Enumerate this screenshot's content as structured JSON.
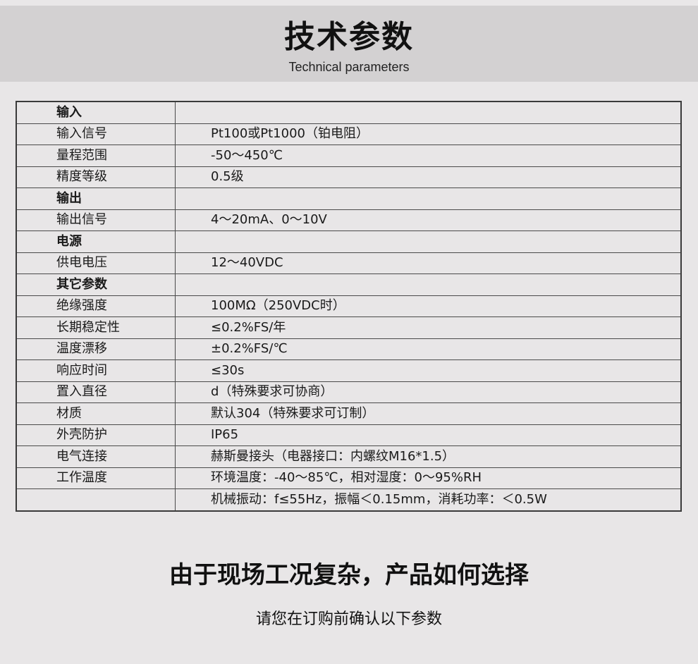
{
  "header": {
    "title": "技术参数",
    "subtitle": "Technical parameters"
  },
  "table": {
    "rows": [
      {
        "key": "输入",
        "value": "",
        "section": true
      },
      {
        "key": "输入信号",
        "value": "Pt100或Pt1000（铂电阻）"
      },
      {
        "key": "量程范围",
        "value": "-50～450℃"
      },
      {
        "key": "精度等级",
        "value": "0.5级"
      },
      {
        "key": "输出",
        "value": "",
        "section": true
      },
      {
        "key": "输出信号",
        "value": "4～20mA、0～10V"
      },
      {
        "key": "电源",
        "value": "",
        "section": true
      },
      {
        "key": "供电电压",
        "value": "12～40VDC"
      },
      {
        "key": "其它参数",
        "value": "",
        "section": true
      },
      {
        "key": "绝缘强度",
        "value": "100MΩ（250VDC时）"
      },
      {
        "key": "长期稳定性",
        "value": "≤0.2%FS/年"
      },
      {
        "key": "温度漂移",
        "value": "±0.2%FS/℃"
      },
      {
        "key": "响应时间",
        "value": "≤30s"
      },
      {
        "key": "置入直径",
        "value": "d（特殊要求可协商）"
      },
      {
        "key": "材质",
        "value": "默认304（特殊要求可订制）"
      },
      {
        "key": "外壳防护",
        "value": "IP65"
      },
      {
        "key": "电气连接",
        "value": "赫斯曼接头（电器接口：内螺纹M16*1.5）"
      },
      {
        "key": "工作温度",
        "value": "环境温度：-40～85℃，相对湿度：0～95%RH"
      },
      {
        "key": "",
        "value": "机械振动：f≤55Hz，振幅＜0.15mm，消耗功率：＜0.5W"
      }
    ]
  },
  "footer": {
    "title": "由于现场工况复杂，产品如何选择",
    "subtitle": "请您在订购前确认以下参数"
  }
}
